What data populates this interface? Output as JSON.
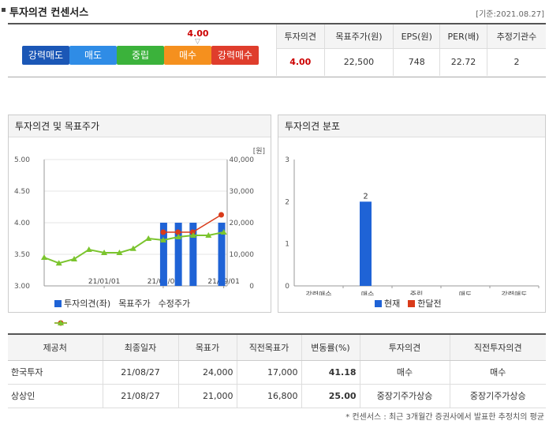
{
  "header": {
    "title": "투자의견 컨센서스",
    "date": "[기준:2021.08.27]"
  },
  "consensus": {
    "score": "4.00",
    "score_fraction": 0.75,
    "scale": [
      {
        "label": "강력매도",
        "color": "#1b57b6"
      },
      {
        "label": "매도",
        "color": "#2f8ce6"
      },
      {
        "label": "중립",
        "color": "#3bb23b"
      },
      {
        "label": "매수",
        "color": "#f5901e"
      },
      {
        "label": "강력매수",
        "color": "#df3d2c"
      }
    ],
    "summary_headers": [
      "투자의견",
      "목표주가(원)",
      "EPS(원)",
      "PER(배)",
      "추정기관수"
    ],
    "summary_values": [
      "4.00",
      "22,500",
      "748",
      "22.72",
      "2"
    ]
  },
  "panel_left": {
    "title": "투자의견 및 목표주가"
  },
  "panel_right": {
    "title": "투자의견 분포"
  },
  "chart_data": [
    {
      "type": "bar",
      "title": "투자의견 및 목표주가",
      "unit_right": "[원]",
      "y_left_ticks": [
        "5.00",
        "4.50",
        "4.00",
        "3.50",
        "3.00"
      ],
      "y_left_range": [
        3.0,
        5.0
      ],
      "y_right_ticks": [
        "40,000",
        "30,000",
        "20,000",
        "10,000",
        "0"
      ],
      "y_right_range": [
        0,
        40000
      ],
      "x_ticks": [
        "21/01/01",
        "21/05/01",
        "21/09/01"
      ],
      "x_range": [
        "2020-09-01",
        "2021-09-08"
      ],
      "series": [
        {
          "name": "투자의견(좌)",
          "color": "#1f63d6",
          "points": [
            {
              "date": "2021-05-01",
              "value": 4.0
            },
            {
              "date": "2021-05-31",
              "value": 4.0
            },
            {
              "date": "2021-06-30",
              "value": 4.0
            },
            {
              "date": "2021-08-27",
              "value": 4.0
            }
          ]
        },
        {
          "name": "목표주가",
          "color": "#d93b1a",
          "points": [
            {
              "date": "2021-05-01",
              "value": 17000
            },
            {
              "date": "2021-05-31",
              "value": 17000
            },
            {
              "date": "2021-06-30",
              "value": 17000
            },
            {
              "date": "2021-08-27",
              "value": 22500
            }
          ]
        },
        {
          "name": "수정주가",
          "color": "#7bc42e",
          "points": [
            {
              "date": "2020-09-01",
              "value": 9000
            },
            {
              "date": "2020-10-01",
              "value": 7200
            },
            {
              "date": "2020-11-01",
              "value": 8500
            },
            {
              "date": "2020-12-01",
              "value": 11500
            },
            {
              "date": "2021-01-01",
              "value": 10500
            },
            {
              "date": "2021-02-01",
              "value": 10500
            },
            {
              "date": "2021-03-01",
              "value": 11800
            },
            {
              "date": "2021-04-01",
              "value": 15000
            },
            {
              "date": "2021-05-01",
              "value": 14500
            },
            {
              "date": "2021-06-01",
              "value": 15500
            },
            {
              "date": "2021-07-01",
              "value": 16000
            },
            {
              "date": "2021-08-01",
              "value": 16000
            },
            {
              "date": "2021-09-01",
              "value": 17000
            }
          ]
        }
      ]
    },
    {
      "type": "bar",
      "title": "투자의견 분포",
      "categories": [
        "강력매수",
        "매수",
        "중립",
        "매도",
        "강력매도"
      ],
      "y_ticks": [
        "3",
        "2",
        "1",
        "0"
      ],
      "ylim": [
        0,
        3
      ],
      "series": [
        {
          "name": "현재",
          "color": "#1f63d6",
          "values": [
            0,
            2,
            0,
            0,
            0
          ]
        },
        {
          "name": "한달전",
          "color": "#d93b1a",
          "values": [
            0,
            0,
            0,
            0,
            0
          ]
        }
      ],
      "data_labels": [
        "",
        "2",
        "",
        "",
        ""
      ]
    }
  ],
  "table": {
    "headers": [
      "제공처",
      "최종일자",
      "목표가",
      "직전목표가",
      "변동률(%)",
      "투자의견",
      "직전투자의견"
    ],
    "rows": [
      [
        "한국투자",
        "21/08/27",
        "24,000",
        "17,000",
        "41.18",
        "매수",
        "매수"
      ],
      [
        "상상인",
        "21/08/27",
        "21,000",
        "16,800",
        "25.00",
        "중장기주가상승",
        "중장기주가상승"
      ]
    ]
  },
  "footnote": "* 컨센서스 : 최근 3개월간 증권사에서 발표한 추정치의 평균"
}
